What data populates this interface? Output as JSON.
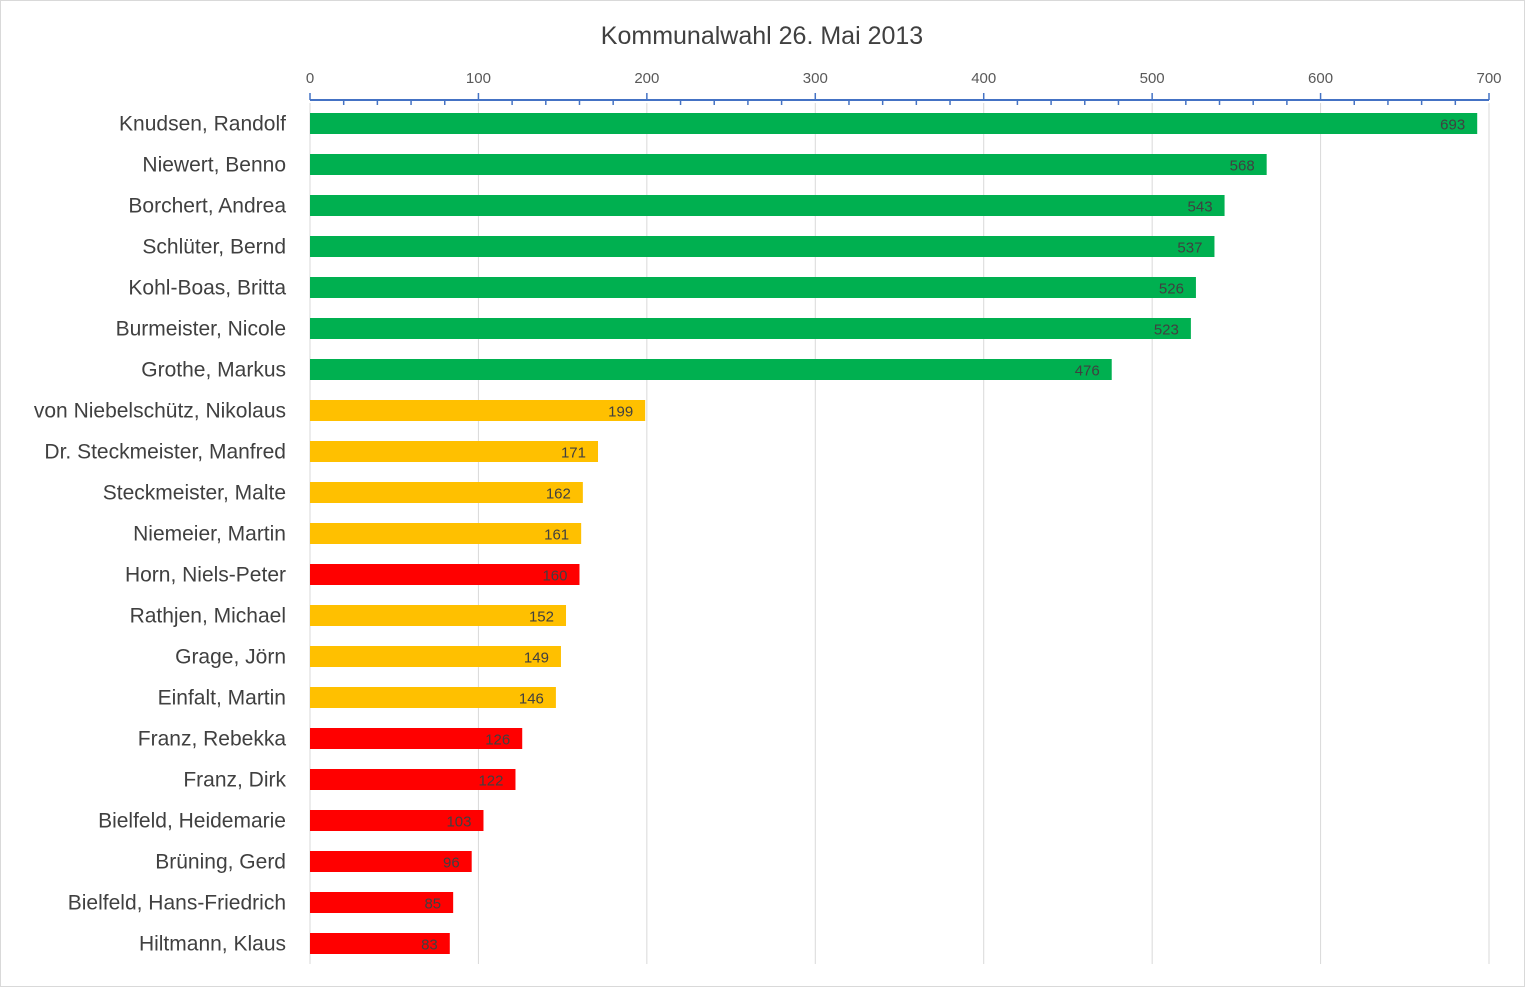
{
  "chart_data": {
    "type": "bar",
    "orientation": "horizontal",
    "title": "Kommunalwahl 26. Mai 2013",
    "xlabel": "",
    "ylabel": "",
    "xlim": [
      0,
      700
    ],
    "x_axis_position": "top",
    "x_ticks": [
      0,
      100,
      200,
      300,
      400,
      500,
      600,
      700
    ],
    "grid": true,
    "legend": "none",
    "colors": {
      "green": "#00b050",
      "yellow": "#ffc000",
      "red": "#ff0000"
    },
    "categories": [
      "Knudsen, Randolf",
      "Niewert, Benno",
      "Borchert, Andrea",
      "Schlüter, Bernd",
      "Kohl-Boas, Britta",
      "Burmeister, Nicole",
      "Grothe, Markus",
      "von Niebelschütz, Nikolaus",
      "Dr. Steckmeister, Manfred",
      "Steckmeister, Malte",
      "Niemeier, Martin",
      "Horn, Niels-Peter",
      "Rathjen, Michael",
      "Grage, Jörn",
      "Einfalt, Martin",
      "Franz, Rebekka",
      "Franz, Dirk",
      "Bielfeld, Heidemarie",
      "Brüning, Gerd",
      "Bielfeld, Hans-Friedrich",
      "Hiltmann, Klaus"
    ],
    "values": [
      693,
      568,
      543,
      537,
      526,
      523,
      476,
      199,
      171,
      162,
      161,
      160,
      152,
      149,
      146,
      126,
      122,
      103,
      96,
      85,
      83
    ],
    "bar_colors": [
      "#00b050",
      "#00b050",
      "#00b050",
      "#00b050",
      "#00b050",
      "#00b050",
      "#00b050",
      "#ffc000",
      "#ffc000",
      "#ffc000",
      "#ffc000",
      "#ff0000",
      "#ffc000",
      "#ffc000",
      "#ffc000",
      "#ff0000",
      "#ff0000",
      "#ff0000",
      "#ff0000",
      "#ff0000",
      "#ff0000"
    ]
  }
}
